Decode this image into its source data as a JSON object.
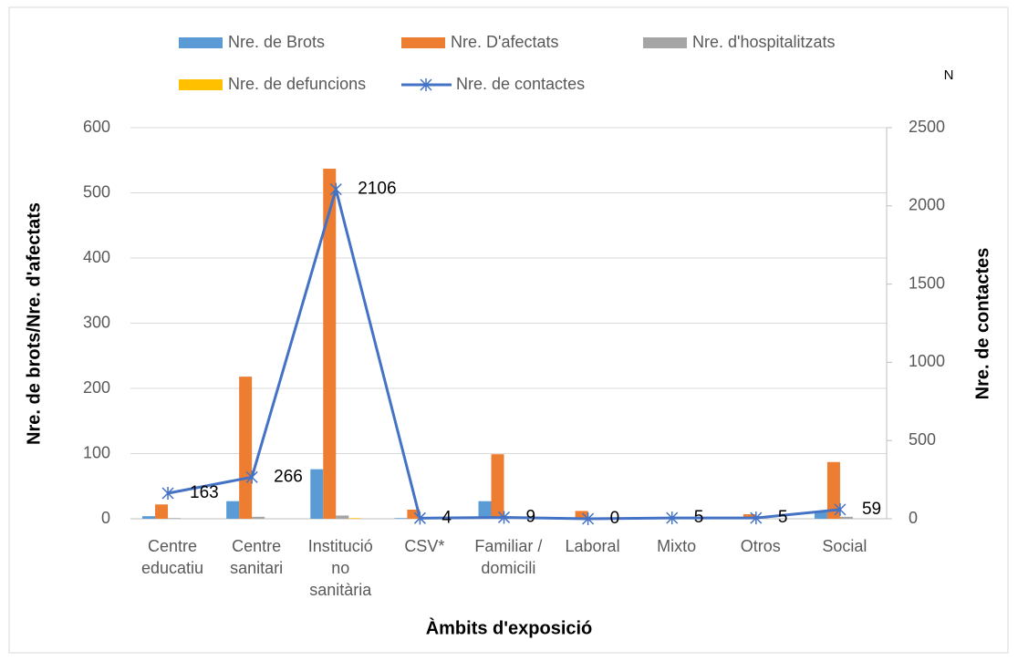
{
  "chart_data": {
    "type": "bar",
    "xlabel": "Àmbits d'exposició",
    "ylabel": "Nre. de brots/Nre. d'afectats",
    "y2label": "Nre. de contactes",
    "y2note": "N",
    "categories": [
      "Centre educatiu",
      "Centre sanitari",
      "Institució no sanitària",
      "CSV*",
      "Familiar / domicili",
      "Laboral",
      "Mixto",
      "Otros",
      "Social"
    ],
    "series": [
      {
        "name": "Nre. de Brots",
        "type": "bar",
        "color": "#5b9bd5",
        "values": [
          4,
          27,
          76,
          1,
          27,
          1,
          0,
          1,
          10
        ]
      },
      {
        "name": "Nre. D'afectats",
        "type": "bar",
        "color": "#ed7d31",
        "values": [
          22,
          218,
          537,
          14,
          99,
          12,
          1,
          7,
          87
        ]
      },
      {
        "name": "Nre. d'hospitalitzats",
        "type": "bar",
        "color": "#a5a5a5",
        "values": [
          1,
          3,
          5,
          0,
          1,
          0,
          0,
          0,
          3
        ]
      },
      {
        "name": "Nre. de defuncions",
        "type": "bar",
        "color": "#ffc000",
        "values": [
          0,
          0,
          1,
          0,
          0,
          0,
          0,
          0,
          0
        ]
      },
      {
        "name": "Nre. de contactes",
        "type": "line",
        "axis": "y2",
        "color": "#4472c4",
        "values": [
          163,
          266,
          2106,
          4,
          9,
          0,
          5,
          5,
          59
        ]
      }
    ],
    "ylim": [
      0,
      600
    ],
    "yticks": [
      0,
      100,
      200,
      300,
      400,
      500,
      600
    ],
    "y2lim": [
      0,
      2500
    ],
    "y2ticks": [
      0,
      500,
      1000,
      1500,
      2000,
      2500
    ],
    "grid": true
  }
}
